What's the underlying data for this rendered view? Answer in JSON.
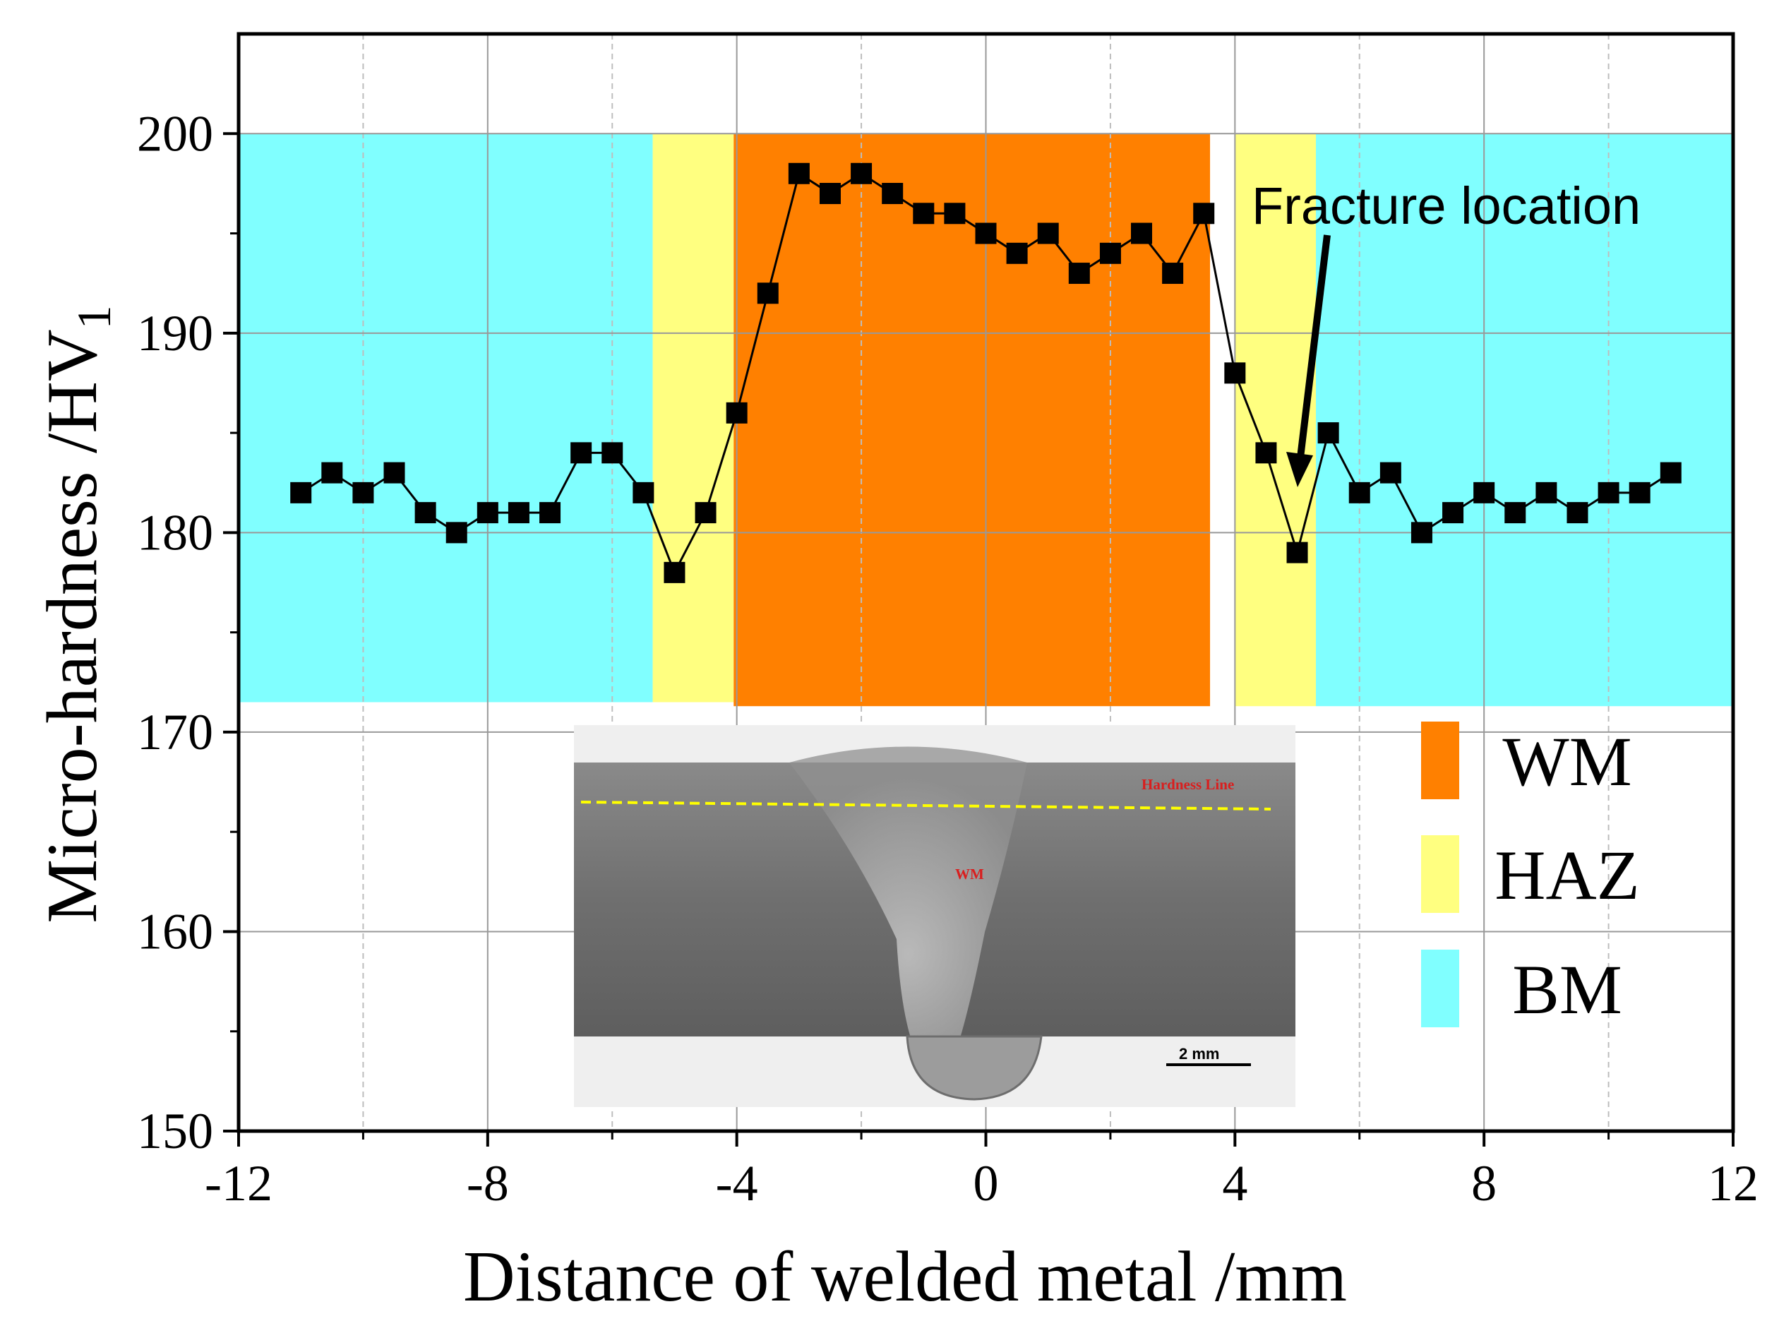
{
  "chart_data": {
    "type": "line",
    "xlabel": "Distance  of welded metal /mm",
    "ylabel_main": "Micro-hardness /HV",
    "ylabel_sub": "1",
    "xlim": [
      -12,
      12
    ],
    "ylim": [
      150,
      205
    ],
    "xticks": [
      -12,
      -8,
      -4,
      0,
      4,
      8,
      12
    ],
    "xtick_labels": [
      "-12",
      "-8",
      "-4",
      "0",
      "4",
      "8",
      "12"
    ],
    "xminor": [
      -10,
      -6,
      -2,
      2,
      6,
      10
    ],
    "yticks": [
      150,
      160,
      170,
      180,
      190,
      200
    ],
    "ytick_labels": [
      "150",
      "160",
      "170",
      "180",
      "190",
      "200"
    ],
    "yminor": [
      155,
      165,
      175,
      185,
      195
    ],
    "grid": true,
    "series": [
      {
        "name": "Micro-hardness",
        "marker": "square",
        "color": "#000000",
        "x": [
          -11,
          -10.5,
          -10,
          -9.5,
          -9,
          -8.5,
          -8,
          -7.5,
          -7,
          -6.5,
          -6,
          -5.5,
          -5,
          -4.5,
          -4,
          -3.5,
          -3,
          -2.5,
          -2,
          -1.5,
          -1,
          -0.5,
          0,
          0.5,
          1,
          1.5,
          2,
          2.5,
          3,
          3.5,
          4,
          4.5,
          5,
          5.5,
          6,
          6.5,
          7,
          7.5,
          8,
          8.5,
          9,
          9.5,
          10,
          10.5,
          11
        ],
        "y": [
          182,
          183,
          182,
          183,
          181,
          180,
          181,
          181,
          181,
          184,
          184,
          182,
          178,
          181,
          186,
          192,
          198,
          197,
          198,
          197,
          196,
          196,
          195,
          194,
          195,
          193,
          194,
          195,
          193,
          196,
          188,
          184,
          179,
          185,
          182,
          183,
          180,
          181,
          182,
          181,
          182,
          181,
          182,
          182,
          183
        ]
      }
    ],
    "regions": [
      {
        "name": "BM",
        "x0": -12,
        "x1": -5.35,
        "y0": 171.5,
        "y1": 200,
        "color": "#80ffff"
      },
      {
        "name": "HAZ",
        "x0": -5.35,
        "x1": -4.05,
        "y0": 171.5,
        "y1": 200,
        "color": "#ffff80"
      },
      {
        "name": "WM",
        "x0": -4.05,
        "x1": 3.6,
        "y0": 171.3,
        "y1": 200,
        "color": "#ff8000"
      },
      {
        "name": "HAZ",
        "x0": 4.0,
        "x1": 5.3,
        "y0": 171.3,
        "y1": 200,
        "color": "#ffff80"
      },
      {
        "name": "BM",
        "x0": 5.3,
        "x1": 12,
        "y0": 171.3,
        "y1": 200,
        "color": "#80ffff"
      }
    ],
    "legend": {
      "placement": "bottom-right",
      "items": [
        {
          "label": "WM",
          "color": "#ff8000"
        },
        {
          "label": "HAZ",
          "color": "#ffff80"
        },
        {
          "label": "BM",
          "color": "#80ffff"
        }
      ]
    },
    "annotation": {
      "text": "Fracture location",
      "target_x": 5,
      "target_y": 181
    },
    "inset": {
      "hardness_line_label": "Hardness Line",
      "wm_label": "WM",
      "scale_label": "2 mm"
    }
  }
}
